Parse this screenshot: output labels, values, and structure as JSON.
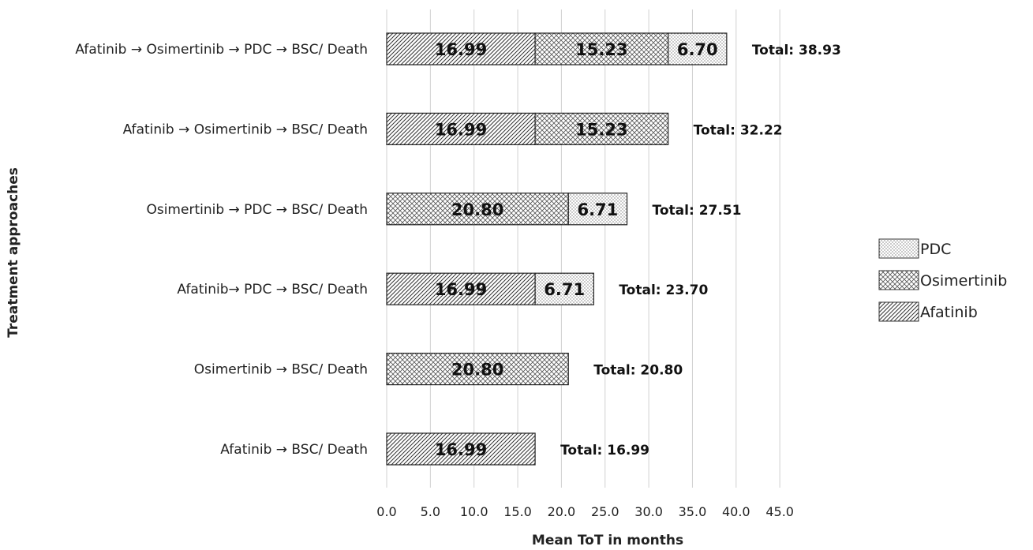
{
  "chart_data": {
    "type": "bar",
    "orientation": "horizontal",
    "stacked": true,
    "xlabel": "Mean ToT in months",
    "ylabel": "Treatment approaches",
    "xlim": [
      0,
      45
    ],
    "xticks": [
      "0.0",
      "5.0",
      "10.0",
      "15.0",
      "20.0",
      "25.0",
      "30.0",
      "35.0",
      "40.0",
      "45.0"
    ],
    "grid": "vertical",
    "legend_position": "right",
    "categories": [
      "Afatinib → Osimertinib → PDC → BSC/ Death",
      "Afatinib → Osimertinib → BSC/ Death",
      "Osimertinib → PDC → BSC/ Death",
      "Afatinib→ PDC → BSC/ Death",
      "Osimertinib → BSC/ Death",
      "Afatinib → BSC/ Death"
    ],
    "series": [
      {
        "name": "Afatinib",
        "pattern": "diagonal",
        "values": [
          16.99,
          16.99,
          0,
          16.99,
          0,
          16.99
        ],
        "labels": [
          "16.99",
          "16.99",
          "",
          "16.99",
          "",
          "16.99"
        ]
      },
      {
        "name": "Osimertinib",
        "pattern": "crosshatch",
        "values": [
          15.23,
          15.23,
          20.8,
          0,
          20.8,
          0
        ],
        "labels": [
          "15.23",
          "15.23",
          "20.80",
          "",
          "20.80",
          ""
        ]
      },
      {
        "name": "PDC",
        "pattern": "dots",
        "values": [
          6.7,
          0,
          6.71,
          6.71,
          0,
          0
        ],
        "labels": [
          "6.70",
          "",
          "6.71",
          "6.71",
          "",
          ""
        ]
      }
    ],
    "totals": [
      "Total: 38.93",
      "Total: 32.22",
      "Total: 27.51",
      "Total: 23.70",
      "Total: 20.80",
      "Total: 16.99"
    ],
    "legend_order": [
      "PDC",
      "Osimertinib",
      "Afatinib"
    ]
  }
}
